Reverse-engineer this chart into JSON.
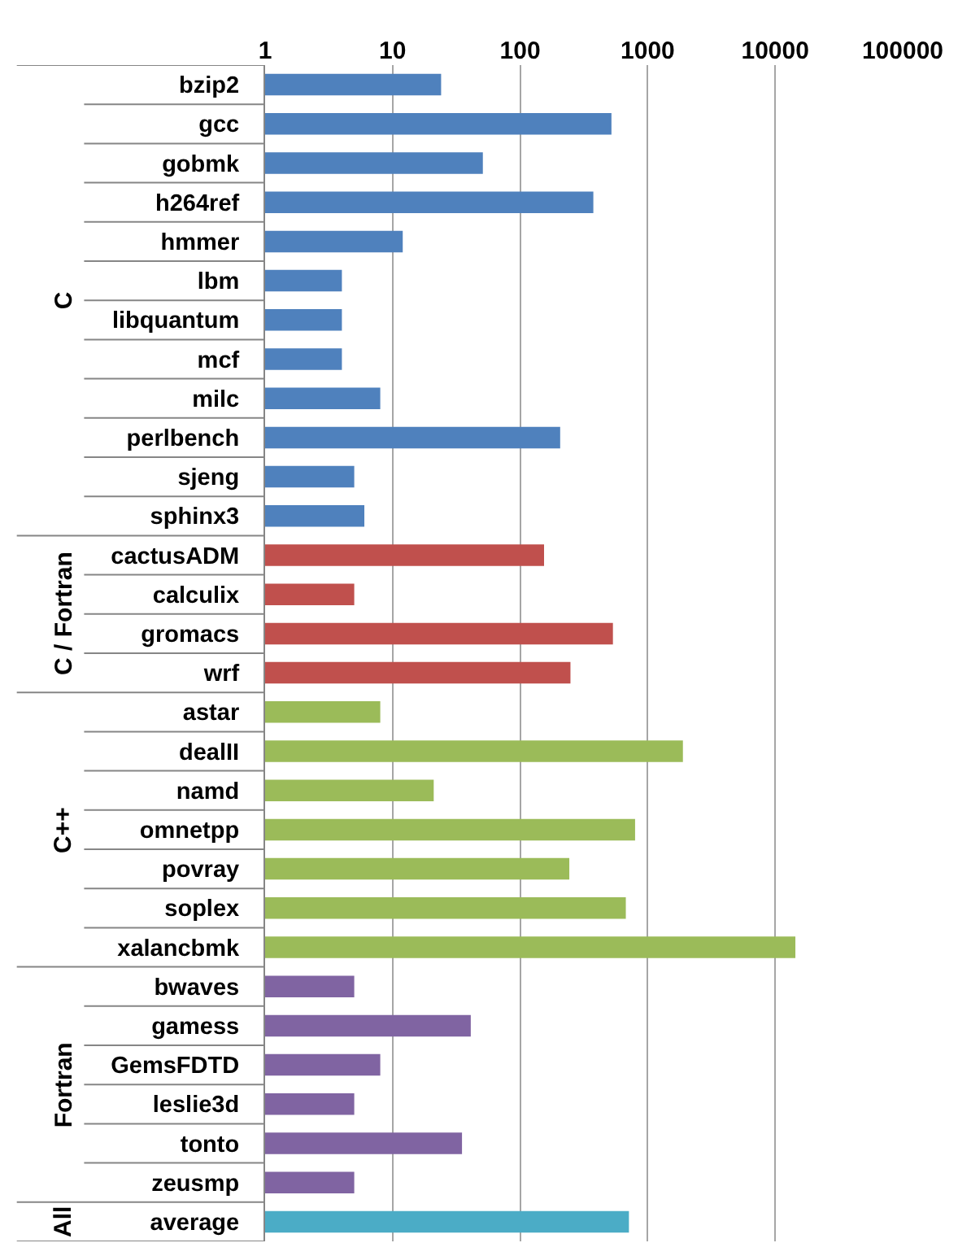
{
  "chart_data": {
    "type": "bar",
    "orientation": "horizontal",
    "log": "x",
    "categories": [
      "bzip2",
      "gcc",
      "gobmk",
      "h264ref",
      "hmmer",
      "lbm",
      "libquantum",
      "mcf",
      "milc",
      "perlbench",
      "sjeng",
      "sphinx3",
      "cactusADM",
      "calculix",
      "gromacs",
      "wrf",
      "astar",
      "dealII",
      "namd",
      "omnetpp",
      "povray",
      "soplex",
      "xalancbmk",
      "bwaves",
      "gamess",
      "GemsFDTD",
      "leslie3d",
      "tonto",
      "zeusmp",
      "average"
    ],
    "series": [
      {
        "name": "C",
        "color": "#4f81bd",
        "values": [
          24,
          520,
          51,
          375,
          12,
          4,
          4,
          4,
          8,
          206,
          5,
          6,
          null,
          null,
          null,
          null,
          null,
          null,
          null,
          null,
          null,
          null,
          null,
          null,
          null,
          null,
          null,
          null,
          null,
          null
        ]
      },
      {
        "name": "C / Fortran",
        "color": "#c0504d",
        "values": [
          null,
          null,
          null,
          null,
          null,
          null,
          null,
          null,
          null,
          null,
          null,
          null,
          154,
          5,
          534,
          248,
          null,
          null,
          null,
          null,
          null,
          null,
          null,
          null,
          null,
          null,
          null,
          null,
          null,
          null
        ]
      },
      {
        "name": "C++",
        "color": "#9bbb59",
        "values": [
          null,
          null,
          null,
          null,
          null,
          null,
          null,
          null,
          null,
          null,
          null,
          null,
          null,
          null,
          null,
          null,
          8,
          1890,
          21,
          797,
          243,
          674,
          14400,
          null,
          null,
          null,
          null,
          null,
          null,
          null
        ]
      },
      {
        "name": "Fortran",
        "color": "#8064a2",
        "values": [
          null,
          null,
          null,
          null,
          null,
          null,
          null,
          null,
          null,
          null,
          null,
          null,
          null,
          null,
          null,
          null,
          null,
          null,
          null,
          null,
          null,
          null,
          null,
          5,
          41,
          8,
          5,
          35,
          5,
          null
        ]
      },
      {
        "name": "All",
        "color": "#4bacc6",
        "values": [
          null,
          null,
          null,
          null,
          null,
          null,
          null,
          null,
          null,
          null,
          null,
          null,
          null,
          null,
          null,
          null,
          null,
          null,
          null,
          null,
          null,
          null,
          null,
          null,
          null,
          null,
          null,
          null,
          null,
          713
        ]
      }
    ],
    "xlim": [
      1,
      100000
    ],
    "xticks": [
      1,
      10,
      100,
      1000,
      10000,
      100000
    ],
    "grid": "x",
    "legend": false
  }
}
